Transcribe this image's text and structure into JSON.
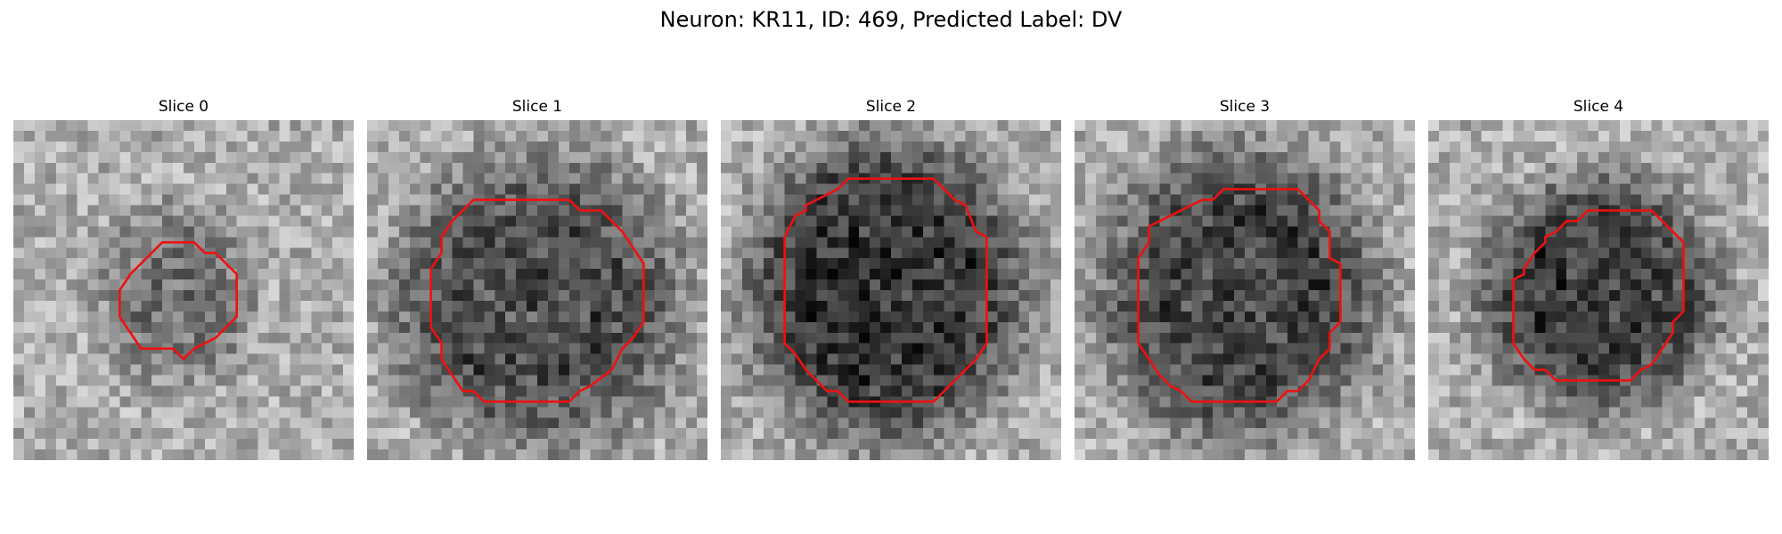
{
  "figure": {
    "title": "Neuron: KR11, ID: 469, Predicted Label: DV"
  },
  "colors": {
    "contour": "#ee1111",
    "background": "#ffffff"
  },
  "panels": [
    {
      "title": "Slice 0",
      "blob_strength": 0.18,
      "contour": [
        [
          14,
          11.5
        ],
        [
          17,
          11.5
        ],
        [
          18,
          12.5
        ],
        [
          19,
          12.5
        ],
        [
          21,
          14.5
        ],
        [
          21,
          18.5
        ],
        [
          19,
          20.5
        ],
        [
          17,
          21.5
        ],
        [
          16,
          22.5
        ],
        [
          15,
          21.5
        ],
        [
          12,
          21.5
        ],
        [
          11,
          20
        ],
        [
          10,
          18.5
        ],
        [
          10,
          16
        ],
        [
          11,
          14.5
        ]
      ]
    },
    {
      "title": "Slice 1",
      "blob_strength": 0.32,
      "contour": [
        [
          10,
          7.5
        ],
        [
          19,
          7.5
        ],
        [
          20,
          8.5
        ],
        [
          22,
          8.5
        ],
        [
          24,
          10.5
        ],
        [
          25,
          12
        ],
        [
          26,
          13.5
        ],
        [
          26,
          19
        ],
        [
          25,
          20.5
        ],
        [
          24,
          21.5
        ],
        [
          23,
          23.5
        ],
        [
          21,
          25
        ],
        [
          20,
          25.5
        ],
        [
          19,
          26.5
        ],
        [
          11,
          26.5
        ],
        [
          10,
          25.5
        ],
        [
          9,
          25.5
        ],
        [
          8,
          24
        ],
        [
          7,
          22.5
        ],
        [
          7,
          21
        ],
        [
          6,
          19.5
        ],
        [
          6,
          14
        ],
        [
          7,
          12.5
        ],
        [
          7,
          11
        ],
        [
          8,
          9.5
        ]
      ]
    },
    {
      "title": "Slice 2",
      "blob_strength": 0.42,
      "contour": [
        [
          12,
          5.5
        ],
        [
          20,
          5.5
        ],
        [
          22,
          7.5
        ],
        [
          23,
          8
        ],
        [
          24,
          10.5
        ],
        [
          25,
          11
        ],
        [
          25,
          21
        ],
        [
          24,
          22.5
        ],
        [
          23,
          23.5
        ],
        [
          21,
          25.5
        ],
        [
          20,
          26.5
        ],
        [
          12,
          26.5
        ],
        [
          11,
          25.5
        ],
        [
          10,
          25.5
        ],
        [
          9,
          24.5
        ],
        [
          8,
          23.5
        ],
        [
          7,
          22
        ],
        [
          6,
          21
        ],
        [
          6,
          11
        ],
        [
          7,
          9
        ],
        [
          8,
          8.5
        ],
        [
          8,
          8
        ],
        [
          9,
          7.5
        ],
        [
          10,
          7
        ],
        [
          11,
          6.5
        ]
      ]
    },
    {
      "title": "Slice 3",
      "blob_strength": 0.36,
      "contour": [
        [
          12,
          7.5
        ],
        [
          13,
          7.5
        ],
        [
          14,
          6.5
        ],
        [
          21,
          6.5
        ],
        [
          23,
          8.5
        ],
        [
          23,
          9.5
        ],
        [
          24,
          10.5
        ],
        [
          24,
          13
        ],
        [
          25,
          13.5
        ],
        [
          25,
          19
        ],
        [
          24,
          20
        ],
        [
          24,
          21.5
        ],
        [
          23,
          22.5
        ],
        [
          22,
          24.5
        ],
        [
          21,
          25.5
        ],
        [
          20,
          25.5
        ],
        [
          19,
          26.5
        ],
        [
          11,
          26.5
        ],
        [
          10,
          25.5
        ],
        [
          9,
          25
        ],
        [
          8,
          24
        ],
        [
          7,
          22.5
        ],
        [
          6,
          21
        ],
        [
          6,
          13
        ],
        [
          7,
          11.5
        ],
        [
          7,
          10
        ],
        [
          8,
          9.5
        ],
        [
          9,
          9
        ],
        [
          10,
          8.5
        ],
        [
          11,
          8
        ]
      ]
    },
    {
      "title": "Slice 4",
      "blob_strength": 0.38,
      "contour": [
        [
          13,
          9.5
        ],
        [
          14,
          9.5
        ],
        [
          15,
          8.5
        ],
        [
          21,
          8.5
        ],
        [
          22,
          9.5
        ],
        [
          23,
          10.5
        ],
        [
          24,
          11.5
        ],
        [
          24,
          18
        ],
        [
          23,
          19
        ],
        [
          23,
          20
        ],
        [
          22,
          21.5
        ],
        [
          21,
          23
        ],
        [
          20,
          23.5
        ],
        [
          19,
          24.5
        ],
        [
          12,
          24.5
        ],
        [
          11,
          23.5
        ],
        [
          10,
          23.5
        ],
        [
          9,
          22.5
        ],
        [
          8,
          21
        ],
        [
          8,
          20
        ],
        [
          8,
          15
        ],
        [
          9,
          14.5
        ],
        [
          9,
          14
        ],
        [
          10,
          12.5
        ],
        [
          11,
          11.5
        ],
        [
          11,
          11
        ],
        [
          12,
          10.5
        ]
      ]
    }
  ]
}
